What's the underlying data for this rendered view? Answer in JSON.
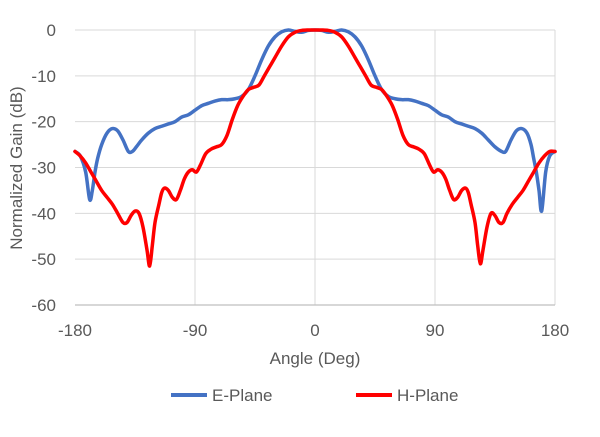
{
  "chart_data": {
    "type": "line",
    "title": "",
    "xlabel": "Angle (Deg)",
    "ylabel": "Normalized Gain (dB)",
    "xlim": [
      -180,
      180
    ],
    "ylim": [
      -60,
      0
    ],
    "x_ticks": [
      "-180",
      "-90",
      "0",
      "90",
      "180"
    ],
    "y_ticks": [
      "0",
      "-10",
      "-20",
      "-30",
      "-40",
      "-50",
      "-60"
    ],
    "grid": "horizontal",
    "legend_position": "bottom",
    "series": [
      {
        "name": "E-Plane",
        "color": "#4472C4",
        "x": [
          -180,
          -176,
          -172,
          -169,
          -167,
          -165,
          -163,
          -160,
          -156,
          -152,
          -148,
          -144,
          -140,
          -137,
          -134,
          -130,
          -125,
          -120,
          -115,
          -110,
          -105,
          -100,
          -95,
          -90,
          -85,
          -80,
          -75,
          -70,
          -65,
          -60,
          -55,
          -50,
          -45,
          -40,
          -35,
          -30,
          -25,
          -20,
          -15,
          -10,
          -5,
          0,
          5,
          10,
          15,
          20,
          25,
          30,
          35,
          40,
          45,
          50,
          55,
          60,
          65,
          70,
          75,
          80,
          85,
          90,
          95,
          100,
          105,
          110,
          115,
          120,
          125,
          130,
          135,
          140,
          143,
          147,
          151,
          155,
          159,
          162,
          164,
          166,
          168,
          170,
          173,
          176,
          180
        ],
        "y": [
          -26.5,
          -27.5,
          -31,
          -37,
          -35,
          -31,
          -28,
          -25,
          -22.5,
          -21.5,
          -22,
          -24,
          -26.5,
          -26.5,
          -25.5,
          -24,
          -22.5,
          -21.5,
          -21,
          -20.5,
          -20,
          -19,
          -18.5,
          -17.5,
          -16.5,
          -16,
          -15.5,
          -15.2,
          -15.2,
          -15,
          -14.5,
          -13,
          -10,
          -6.5,
          -3.5,
          -1.5,
          -0.4,
          0,
          -0.3,
          -0.5,
          -0.1,
          0,
          -0.1,
          -0.5,
          -0.3,
          0,
          -0.4,
          -1.5,
          -3.5,
          -6.5,
          -10,
          -13,
          -14.5,
          -15,
          -15.2,
          -15.2,
          -15.5,
          -16,
          -16.5,
          -17.5,
          -18.5,
          -19,
          -20,
          -20.5,
          -21,
          -21.5,
          -22.5,
          -24,
          -25.5,
          -26.5,
          -26.5,
          -24,
          -22,
          -21.5,
          -22.5,
          -25,
          -28,
          -31,
          -35,
          -39.5,
          -31,
          -27.5,
          -26.5
        ]
      },
      {
        "name": "H-Plane",
        "color": "#FF0000",
        "x": [
          -180,
          -176,
          -172,
          -168,
          -164,
          -160,
          -156,
          -152,
          -148,
          -144,
          -141,
          -138,
          -135,
          -132,
          -129,
          -126,
          -124,
          -122,
          -120,
          -117,
          -115,
          -113,
          -110,
          -107,
          -104,
          -101,
          -98,
          -95,
          -92,
          -89,
          -86,
          -82,
          -78,
          -74,
          -70,
          -66,
          -62,
          -58,
          -54,
          -50,
          -46,
          -42,
          -38,
          -34,
          -30,
          -25,
          -20,
          -15,
          -10,
          -5,
          0,
          5,
          10,
          15,
          20,
          25,
          30,
          34,
          38,
          42,
          46,
          50,
          54,
          58,
          62,
          66,
          70,
          74,
          78,
          82,
          86,
          89,
          92,
          95,
          98,
          101,
          104,
          107,
          110,
          113,
          115,
          117,
          120,
          122,
          124,
          126,
          129,
          132,
          135,
          138,
          141,
          144,
          148,
          152,
          156,
          160,
          164,
          168,
          172,
          176,
          180
        ],
        "y": [
          -26.5,
          -27.5,
          -29,
          -31,
          -33,
          -35,
          -36.5,
          -38,
          -40,
          -42,
          -42,
          -40.5,
          -39.5,
          -40,
          -43,
          -48,
          -51.5,
          -47,
          -42,
          -38,
          -35.5,
          -34.5,
          -35,
          -36.5,
          -37,
          -35,
          -32.5,
          -31,
          -30.5,
          -31,
          -29.5,
          -27,
          -26,
          -25.5,
          -25,
          -23,
          -19.5,
          -16.5,
          -14.5,
          -13,
          -12.5,
          -12,
          -10,
          -8,
          -6,
          -3.5,
          -1.5,
          -0.5,
          -0.1,
          0,
          0,
          0,
          -0.1,
          -0.5,
          -1.5,
          -3.5,
          -6,
          -8,
          -10,
          -12,
          -12.5,
          -13,
          -14.5,
          -16.5,
          -19.5,
          -23,
          -25,
          -25.5,
          -26,
          -27,
          -29.5,
          -31,
          -30.5,
          -31,
          -32.5,
          -35,
          -37,
          -36.5,
          -35,
          -34.5,
          -35.5,
          -38,
          -42,
          -47,
          -51,
          -48,
          -43,
          -40,
          -40.5,
          -42,
          -42,
          -40,
          -38,
          -36.5,
          -35,
          -33,
          -31,
          -29,
          -27.5,
          -26.5,
          -26.5
        ]
      }
    ]
  }
}
